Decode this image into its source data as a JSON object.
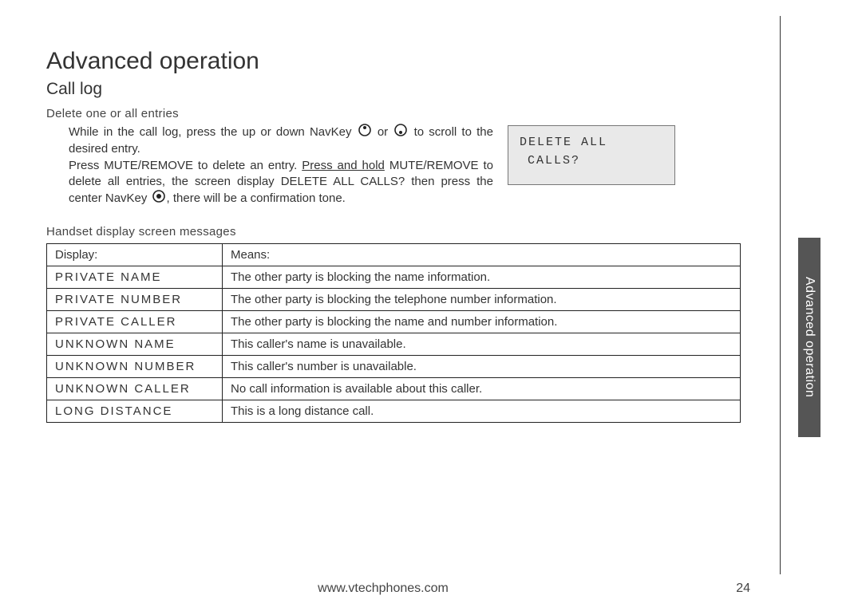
{
  "title": "Advanced operation",
  "section": "Call log",
  "delete_heading": "Delete one or all entries",
  "para1a": "While in the call log, press the up or down NavKey ",
  "para1b": " or ",
  "para1c": " to scroll to the desired entry.",
  "para2a": "Press MUTE/REMOVE to delete an entry. ",
  "para2b": "Press and hold",
  "para2c": " MUTE/REMOVE to delete all entries, the screen display DELETE ALL CALLS? then press the center NavKey ",
  "para2d": ", there will be a confirmation tone.",
  "display_box_line1": "DELETE ALL",
  "display_box_line2": "CALLS?",
  "table_heading": "Handset display screen messages",
  "table": {
    "col1": "Display:",
    "col2": "Means:",
    "rows": [
      {
        "display": "PRIVATE NAME",
        "means": "The other party is blocking the name information."
      },
      {
        "display": "PRIVATE NUMBER",
        "means": "The other party is blocking the telephone number information."
      },
      {
        "display": "PRIVATE CALLER",
        "means": "The other party is blocking the name and number information."
      },
      {
        "display": "UNKNOWN NAME",
        "means": "This caller's name is unavailable."
      },
      {
        "display": "UNKNOWN NUMBER",
        "means": "This caller's number is unavailable."
      },
      {
        "display": "UNKNOWN CALLER",
        "means": "No call information is available about this caller."
      },
      {
        "display": "LONG DISTANCE",
        "means": "This is a long distance call."
      }
    ]
  },
  "footer_url": "www.vtechphones.com",
  "page_number": "24",
  "side_tab": "Advanced operation",
  "colors": {
    "tab_bg": "#555555",
    "tab_fg": "#ffffff",
    "box_bg": "#e9e9e9",
    "border": "#222222"
  }
}
